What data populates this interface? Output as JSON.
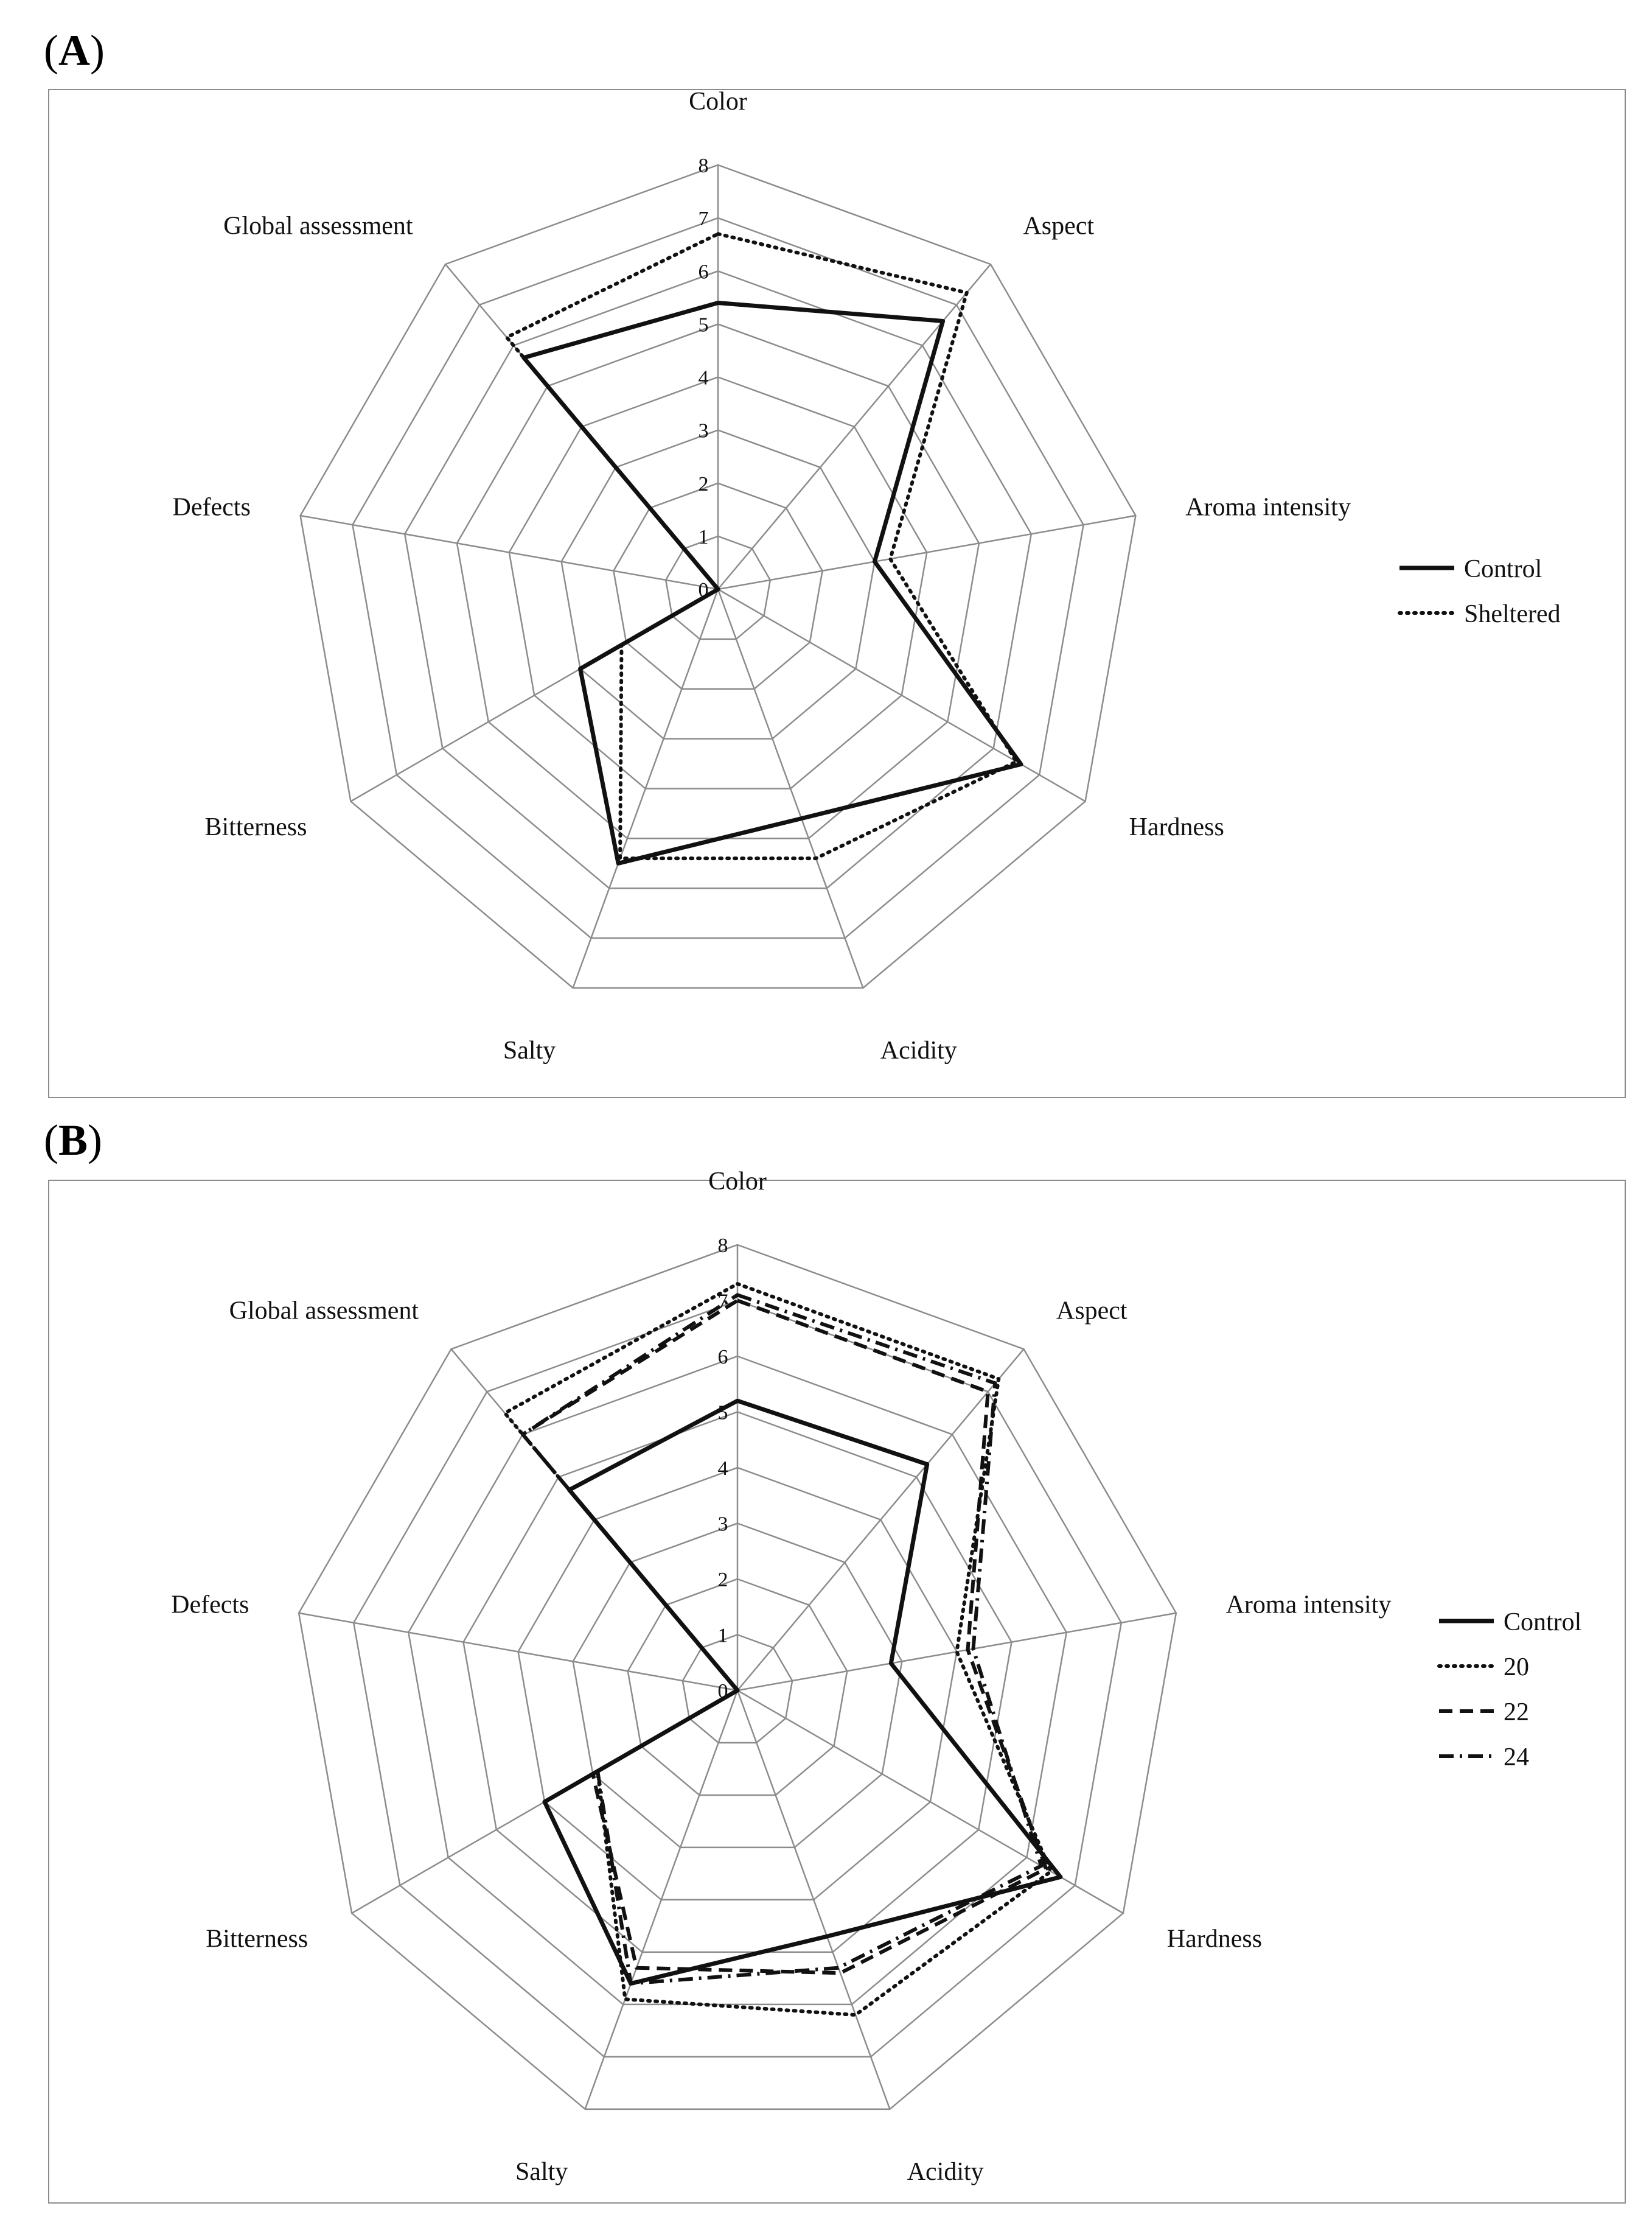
{
  "panels": [
    {
      "label_letter": "A"
    },
    {
      "label_letter": "B"
    }
  ],
  "chart_data": [
    {
      "type": "radar",
      "panel": "A",
      "axes": [
        "Color",
        "Aspect",
        "Aroma intensity",
        "Hardness",
        "Acidity",
        "Salty",
        "Bitterness",
        "Defects",
        "Global assessment"
      ],
      "r_ticks": [
        "0",
        "1",
        "2",
        "3",
        "4",
        "5",
        "6",
        "7",
        "8"
      ],
      "rlim": [
        0,
        8
      ],
      "legend_position": "right",
      "series": [
        {
          "name": "Control",
          "style": "solid",
          "values": [
            5.4,
            6.6,
            3.0,
            6.6,
            4.6,
            5.5,
            3.0,
            0.0,
            5.7
          ]
        },
        {
          "name": "Sheltered",
          "style": "dotted",
          "values": [
            6.7,
            7.3,
            3.3,
            6.5,
            5.4,
            5.4,
            2.1,
            0.0,
            6.2
          ]
        }
      ]
    },
    {
      "type": "radar",
      "panel": "B",
      "axes": [
        "Color",
        "Aspect",
        "Aroma intensity",
        "Hardness",
        "Acidity",
        "Salty",
        "Bitterness",
        "Defects",
        "Global assessment"
      ],
      "r_ticks": [
        "0",
        "1",
        "2",
        "3",
        "4",
        "5",
        "6",
        "7",
        "8"
      ],
      "rlim": [
        0,
        8
      ],
      "legend_position": "right",
      "series": [
        {
          "name": "Control",
          "style": "solid",
          "values": [
            5.2,
            5.3,
            2.8,
            6.7,
            4.7,
            5.6,
            4.0,
            0.0,
            4.7
          ]
        },
        {
          "name": "20",
          "style": "dotted",
          "values": [
            7.3,
            7.3,
            4.0,
            6.5,
            6.2,
            5.9,
            2.9,
            0.0,
            6.5
          ]
        },
        {
          "name": "22",
          "style": "dashed",
          "values": [
            7.0,
            7.0,
            4.2,
            6.4,
            5.4,
            5.3,
            3.0,
            0.0,
            6.0
          ]
        },
        {
          "name": "24",
          "style": "dashdot",
          "values": [
            7.1,
            7.2,
            4.3,
            6.3,
            5.3,
            5.6,
            2.9,
            0.0,
            6.0
          ]
        }
      ]
    }
  ]
}
